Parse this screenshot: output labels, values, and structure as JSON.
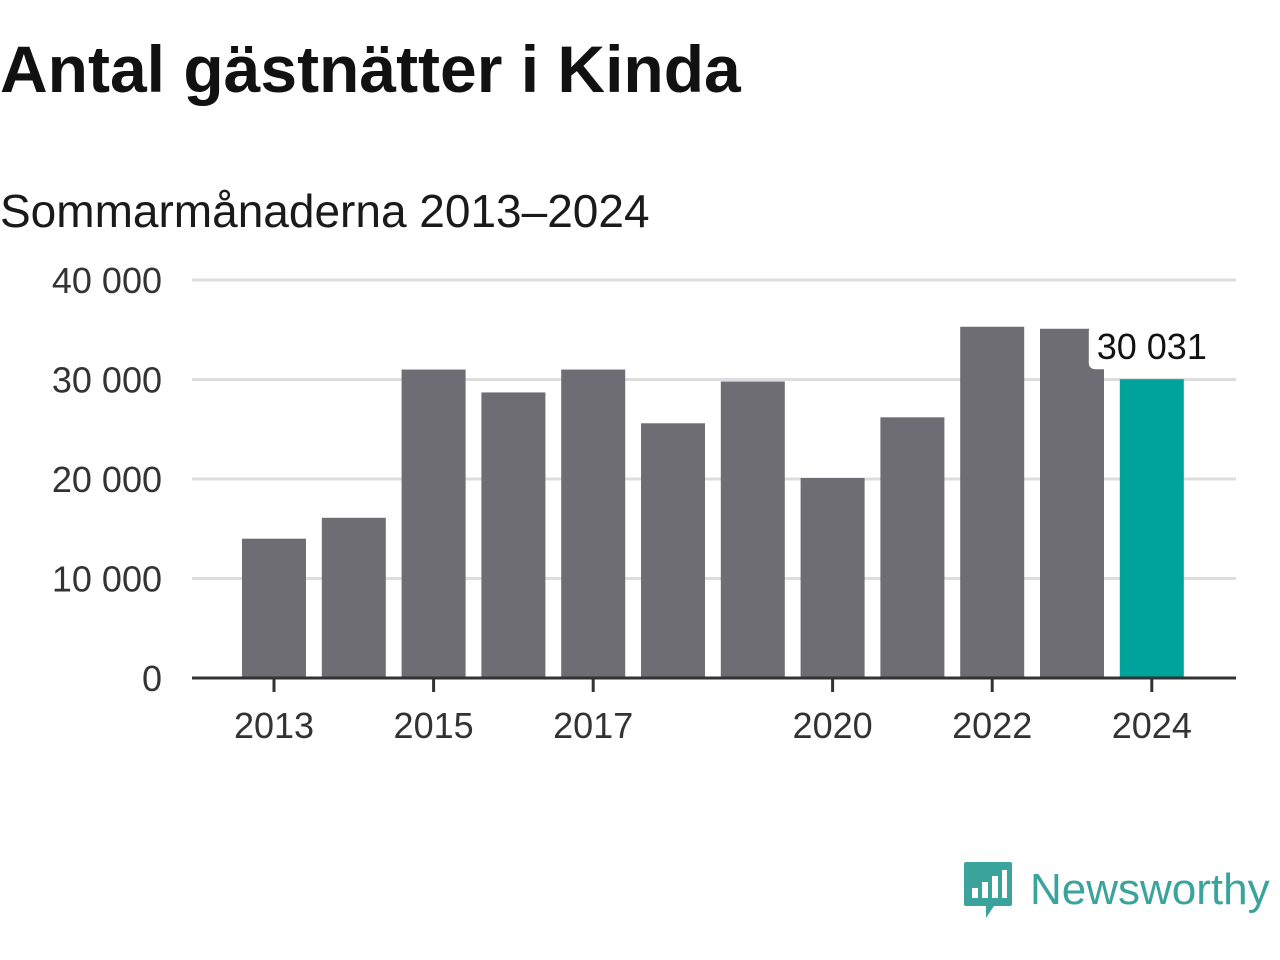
{
  "chart_data": {
    "type": "bar",
    "title": "Antal gästnätter i Kinda",
    "subtitle": "Sommarmånaderna 2013–2024",
    "xlabel": "",
    "ylabel": "",
    "x": [
      2013,
      2014,
      2015,
      2016,
      2017,
      2018,
      2019,
      2020,
      2021,
      2022,
      2023,
      2024
    ],
    "values": [
      14000,
      16100,
      31000,
      28700,
      31000,
      25600,
      29800,
      20100,
      26200,
      35300,
      35100,
      30031
    ],
    "ylim": [
      0,
      40000
    ],
    "yticks": [
      0,
      10000,
      20000,
      30000,
      40000
    ],
    "ytick_labels": [
      "0",
      "10 000",
      "20 000",
      "30 000",
      "40 000"
    ],
    "xtick_labels": [
      "2013",
      "2015",
      "2017",
      "2020",
      "2022",
      "2024"
    ],
    "grid": true,
    "legend": "none",
    "highlight": {
      "year": 2024,
      "label": "30 031"
    },
    "colors": {
      "bar": "#6e6d74",
      "highlight": "#00a39b",
      "grid": "#dddddd",
      "axis": "#333333"
    }
  },
  "brand": {
    "name": "Newsworthy",
    "icon": "newsworthy-logo-icon",
    "color": "#3aa39b"
  }
}
